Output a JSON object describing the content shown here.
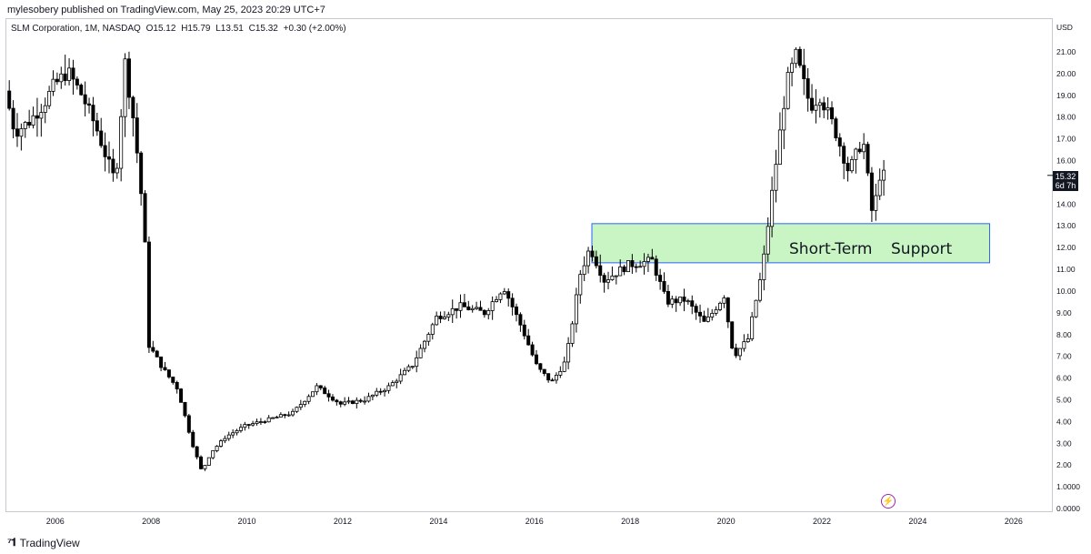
{
  "header": {
    "published": "mylesobery published on TradingView.com, May 25, 2023 20:29 UTC+7"
  },
  "legend": {
    "symbol": "SLM Corporation, 1M, NASDAQ",
    "open": "O15.12",
    "high": "H15.79",
    "low": "L13.51",
    "close": "C15.32",
    "change": "+0.30 (+2.00%)"
  },
  "price_tag": {
    "price": "15.32",
    "countdown": "6d 7h"
  },
  "footer": {
    "brand": "TradingView"
  },
  "colors": {
    "up": "#000000",
    "down": "#000000",
    "support_fill": "#c8f5c3",
    "support_border": "#2962ff",
    "axis_text": "#131722",
    "frame": "#c7c9cf",
    "flash": "#9c27b0"
  },
  "icons": {
    "footer_logo": "tradingview-logo-icon",
    "flash": "lightning-icon"
  },
  "chart_data": {
    "type": "candlestick",
    "title": "",
    "currency_label": "USD",
    "x_ticks": [
      "2006",
      "2008",
      "2010",
      "2012",
      "2014",
      "2016",
      "2018",
      "2020",
      "2022",
      "2024",
      "2026"
    ],
    "y_ticks": [
      "0.0000",
      "1.0000",
      "2.00",
      "3.00",
      "4.00",
      "5.00",
      "6.00",
      "7.00",
      "8.00",
      "9.00",
      "10.00",
      "11.00",
      "12.00",
      "13.00",
      "14.00",
      "15.00",
      "16.00",
      "17.00",
      "18.00",
      "19.00",
      "20.00",
      "21.00"
    ],
    "xlim": [
      2005.0,
      2026.8
    ],
    "ylim": [
      0,
      22
    ],
    "grid": false,
    "support_zone": {
      "label_left": "Short-Term",
      "label_right": "Support",
      "x_start": 2017.2,
      "x_end": 2025.5,
      "y_low": 11.3,
      "y_high": 13.1
    },
    "path": [
      [
        2005.0,
        19.2
      ],
      [
        2005.2,
        17.3
      ],
      [
        2005.5,
        17.8
      ],
      [
        2005.8,
        18.6
      ],
      [
        2006.0,
        19.4
      ],
      [
        2006.3,
        20.1
      ],
      [
        2006.6,
        19.0
      ],
      [
        2006.9,
        17.5
      ],
      [
        2007.1,
        16.2
      ],
      [
        2007.3,
        15.0
      ],
      [
        2007.5,
        20.5
      ],
      [
        2007.7,
        17.5
      ],
      [
        2007.9,
        13.0
      ],
      [
        2008.0,
        7.5
      ],
      [
        2008.3,
        6.4
      ],
      [
        2008.6,
        5.5
      ],
      [
        2008.9,
        3.0
      ],
      [
        2009.1,
        1.7
      ],
      [
        2009.3,
        2.6
      ],
      [
        2009.6,
        3.3
      ],
      [
        2010.0,
        3.8
      ],
      [
        2010.5,
        4.1
      ],
      [
        2011.0,
        4.4
      ],
      [
        2011.5,
        5.6
      ],
      [
        2012.0,
        4.8
      ],
      [
        2012.5,
        5.0
      ],
      [
        2013.0,
        5.6
      ],
      [
        2013.5,
        6.6
      ],
      [
        2014.0,
        8.8
      ],
      [
        2014.5,
        9.3
      ],
      [
        2015.0,
        9.0
      ],
      [
        2015.4,
        10.2
      ],
      [
        2015.8,
        8.2
      ],
      [
        2016.1,
        6.5
      ],
      [
        2016.4,
        5.8
      ],
      [
        2016.7,
        6.8
      ],
      [
        2017.0,
        10.8
      ],
      [
        2017.2,
        12.0
      ],
      [
        2017.5,
        10.5
      ],
      [
        2018.0,
        11.2
      ],
      [
        2018.5,
        11.4
      ],
      [
        2018.8,
        9.5
      ],
      [
        2019.2,
        9.6
      ],
      [
        2019.6,
        8.5
      ],
      [
        2020.0,
        9.8
      ],
      [
        2020.2,
        7.0
      ],
      [
        2020.5,
        7.8
      ],
      [
        2020.8,
        11.0
      ],
      [
        2021.0,
        14.5
      ],
      [
        2021.3,
        19.5
      ],
      [
        2021.5,
        20.8
      ],
      [
        2021.8,
        18.5
      ],
      [
        2022.0,
        19.0
      ],
      [
        2022.3,
        17.5
      ],
      [
        2022.6,
        15.5
      ],
      [
        2022.9,
        17.0
      ],
      [
        2023.1,
        13.4
      ],
      [
        2023.25,
        15.32
      ]
    ]
  }
}
